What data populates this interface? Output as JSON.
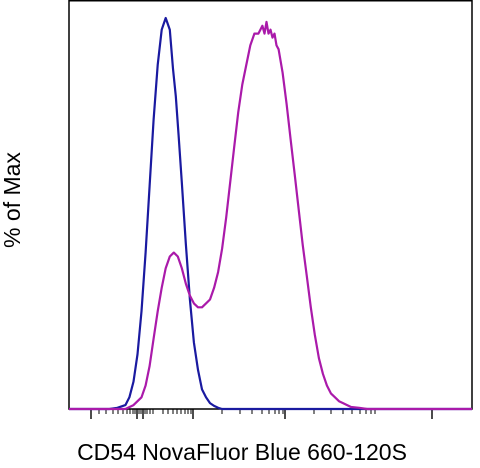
{
  "chart_data": {
    "type": "line",
    "title": "",
    "xlabel": "CD54 NovaFluor Blue 660-120S",
    "ylabel": "% of Max",
    "xscale": "biexponential",
    "grid": false,
    "legend": "none",
    "xlim": [
      0,
      100
    ],
    "ylim": [
      0,
      100
    ],
    "series": [
      {
        "color": "#1a1aa0",
        "x": [
          0,
          10,
          12,
          14,
          15,
          16,
          17,
          18,
          19,
          20,
          21,
          22,
          23,
          24,
          25,
          25.8,
          26.5,
          27.2,
          28,
          29,
          30,
          31,
          32,
          33,
          34,
          35,
          36,
          37,
          38,
          40,
          42,
          100
        ],
        "y": [
          0,
          0,
          0.3,
          1,
          3,
          7,
          14,
          25,
          40,
          57,
          74,
          88,
          97,
          100,
          97,
          87,
          80,
          70,
          58,
          42,
          28,
          17,
          10,
          5,
          3,
          1.5,
          0.8,
          0.3,
          0,
          0,
          0,
          0
        ]
      },
      {
        "color": "#aa1aaa",
        "x": [
          0,
          14,
          16,
          18,
          19,
          20,
          21,
          22,
          23,
          24,
          25,
          26,
          27,
          28,
          29,
          30,
          31,
          32,
          33,
          34,
          35,
          36,
          37,
          38,
          39,
          40,
          41,
          42,
          43,
          44,
          45,
          46,
          47,
          48,
          48.5,
          49,
          49.5,
          50,
          50.5,
          51,
          51.5,
          52,
          53,
          54,
          55,
          56,
          57,
          58,
          59,
          60,
          61,
          62,
          63,
          64,
          65,
          66,
          67,
          68,
          69,
          70,
          72,
          74,
          76,
          100
        ],
        "y": [
          0,
          0,
          1,
          3,
          6,
          11,
          18,
          25,
          31,
          36,
          39,
          40,
          39,
          36,
          32,
          29,
          27,
          26,
          26,
          27,
          28,
          31,
          35,
          41,
          49,
          58,
          67,
          76,
          83,
          88,
          93,
          96,
          96,
          98,
          96,
          99,
          96,
          97,
          95,
          96,
          93,
          92,
          86,
          78,
          69,
          60,
          51,
          42,
          34,
          26,
          19,
          13,
          9,
          6,
          4,
          3,
          2,
          1.5,
          1,
          0.5,
          0.3,
          0,
          0,
          0
        ]
      }
    ]
  }
}
